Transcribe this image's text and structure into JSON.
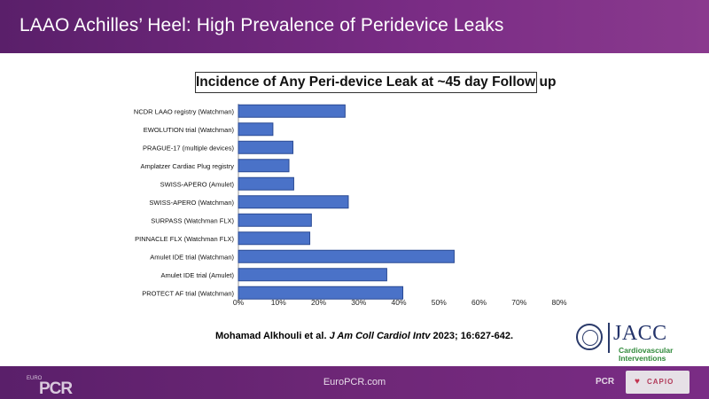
{
  "header": {
    "title": "LAAO Achilles’ Heel: High Prevalence of Peridevice Leaks"
  },
  "citation": {
    "authors": "Mohamad Alkhouli et al.",
    "journal": "J Am Coll Cardiol Intv",
    "details": "2023; 16:627-642."
  },
  "jacc_logo": {
    "name": "JACC",
    "subtitle_line1": "Cardiovascular",
    "subtitle_line2": "Interventions"
  },
  "footer": {
    "url": "EuroPCR.com",
    "left_logo": "PCR",
    "right_logo": "PCR",
    "partner_logo": "CAPIO"
  },
  "colors": {
    "header_bg": "#6e2777",
    "bar_fill": "#4a72c8",
    "bar_stroke": "#2a4a94",
    "jacc_green": "#2f8a3a"
  },
  "chart_data": {
    "type": "bar",
    "orientation": "horizontal",
    "title": "Incidence of Any Peri-device Leak at ~45 day Follow up",
    "xlabel": "",
    "ylabel": "",
    "xlim": [
      0,
      80
    ],
    "x_ticks": [
      "0%",
      "10%",
      "20%",
      "30%",
      "40%",
      "50%",
      "60%",
      "70%",
      "80%"
    ],
    "grid": false,
    "categories": [
      "NCDR LAAO registry (Watchman)",
      "EWOLUTION trial (Watchman)",
      "PRAGUE-17 (multiple devices)",
      "Amplatzer Cardiac Plug registry",
      "SWISS-APERO (Amulet)",
      "SWISS-APERO (Watchman)",
      "SURPASS (Watchman FLX)",
      "PINNACLE FLX (Watchman FLX)",
      "Amulet IDE trial (Watchman)",
      "Amulet IDE trial (Amulet)",
      "PROTECT AF trial (Watchman)"
    ],
    "values": [
      26.6,
      8.6,
      13.6,
      12.6,
      13.8,
      27.4,
      18.2,
      17.8,
      53.8,
      37.0,
      41.0
    ]
  }
}
